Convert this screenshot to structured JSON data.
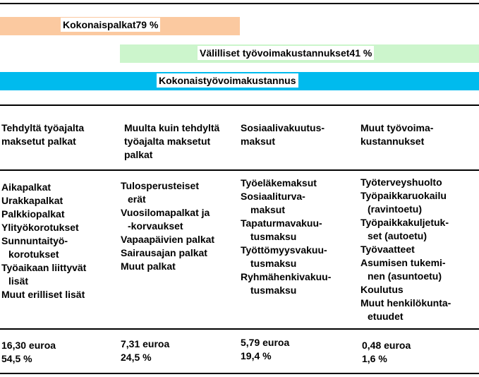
{
  "colors": {
    "bar_kokonaispalkat": "#fbc9a0",
    "bar_valilliset": "#ccf5cc",
    "bar_kokonais": "#00bbee"
  },
  "bars": {
    "kokonaispalkat": {
      "label": "Kokonaispalkat",
      "percent": "79 %"
    },
    "valilliset": {
      "label": "Välilliset työvoimakustannukset",
      "percent": "41 %"
    },
    "kokonais": {
      "label": "Kokonaistyövoimakustannus"
    }
  },
  "columns": [
    {
      "header": [
        "Tehdyltä työajalta",
        "maksetut palkat"
      ],
      "items": [
        "Aikapalkat",
        "Urakkapalkat",
        "Palkkiopalkat",
        "Ylityökorotukset",
        "Sunnuntaityö-",
        "korotukset",
        "Työaikaan liittyvät",
        "lisät",
        "Muut erilliset lisät"
      ],
      "amount": "16,30 euroa",
      "share": "54,5 %"
    },
    {
      "header": [
        "Muulta kuin tehdyltä",
        "työajalta maksetut",
        "palkat"
      ],
      "items": [
        "Tulosperusteiset",
        "erät",
        "Vuosilomapalkat ja",
        "-korvaukset",
        "Vapaapäivien palkat",
        "Sairausajan palkat",
        "Muut palkat"
      ],
      "amount": "7,31 euroa",
      "share": "24,5 %"
    },
    {
      "header": [
        "Sosiaalivakuutus-",
        "maksut"
      ],
      "items": [
        "Työeläkemaksut",
        "Sosiaaliturva-",
        "maksut",
        "Tapaturmavakuu-",
        "tusmaksu",
        "Työttömyysvakuu-",
        "tusmaksu",
        "Ryhmähenkivakuu-",
        "tusmaksu"
      ],
      "amount": "5,79 euroa",
      "share": "19,4 %"
    },
    {
      "header": [
        "Muut työvoima-",
        "kustannukset"
      ],
      "items": [
        "Työterveyshuolto",
        "Työpaikkaruokailu",
        "(ravintoetu)",
        "Työpaikkakuljetuk-",
        "set (autoetu)",
        "Työvaatteet",
        "Asumisen tukemi-",
        "nen (asuntoetu)",
        "Koulutus",
        "Muut henkilökunta-",
        "etuudet"
      ],
      "amount": "0,48 euroa",
      "share": "1,6 %"
    }
  ]
}
